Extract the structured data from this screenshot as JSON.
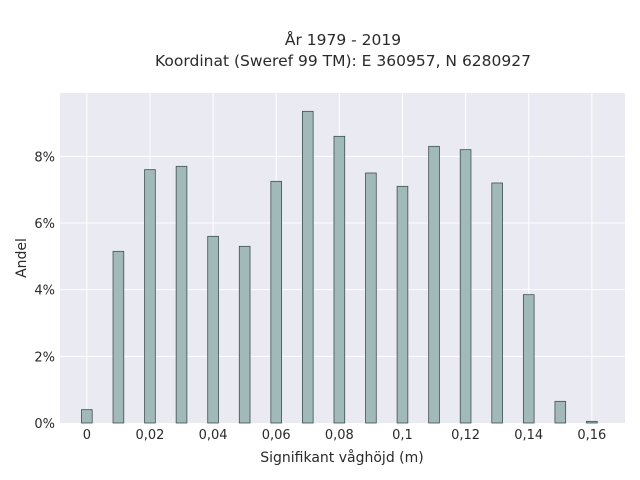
{
  "chart_data": {
    "type": "bar",
    "title_line1": "År 1979 - 2019",
    "title_line2": "Koordinat (Sweref 99 TM): E 360957, N 6280927",
    "xlabel": "Signifikant våghöjd (m)",
    "ylabel": "Andel",
    "x": [
      0,
      0.01,
      0.02,
      0.03,
      0.04,
      0.05,
      0.06,
      0.07,
      0.08,
      0.09,
      0.1,
      0.11,
      0.12,
      0.13,
      0.14,
      0.15,
      0.16
    ],
    "values": [
      0.4,
      5.15,
      7.6,
      7.7,
      5.6,
      5.3,
      7.25,
      9.35,
      8.6,
      7.5,
      7.1,
      8.3,
      8.2,
      7.2,
      3.85,
      0.65,
      0.05
    ],
    "xlim": [
      -0.0085,
      0.1705
    ],
    "ylim": [
      0,
      9.9
    ],
    "xticks": [
      0,
      0.02,
      0.04,
      0.06,
      0.08,
      0.1,
      0.12,
      0.14,
      0.16
    ],
    "xtick_labels": [
      "0",
      "0,02",
      "0,04",
      "0,06",
      "0,08",
      "0,1",
      "0,12",
      "0,14",
      "0,16"
    ],
    "yticks": [
      0,
      2,
      4,
      6,
      8
    ],
    "ytick_labels": [
      "0%",
      "2%",
      "4%",
      "6%",
      "8%"
    ],
    "grid": true,
    "colors": {
      "bar_fill": "#a2b9b9",
      "bar_edge": "#3f4f4f",
      "plot_bg": "#eaeaf2",
      "grid": "#ffffff"
    }
  }
}
